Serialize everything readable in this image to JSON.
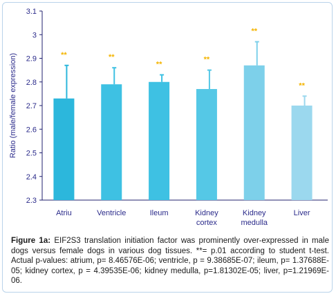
{
  "chart_data": {
    "type": "bar",
    "categories": [
      "Atriu",
      "Ventricle",
      "Ileum",
      "Kidney cortex",
      "Kidney medulla",
      "Liver"
    ],
    "category_lines": [
      [
        "Atriu"
      ],
      [
        "Ventricle"
      ],
      [
        "Ileum"
      ],
      [
        "Kidney",
        "cortex"
      ],
      [
        "Kidney",
        "medulla"
      ],
      [
        "Liver"
      ]
    ],
    "values": [
      2.73,
      2.79,
      2.8,
      2.77,
      2.87,
      2.7
    ],
    "error_upper": [
      2.87,
      2.86,
      2.83,
      2.85,
      2.97,
      2.74
    ],
    "annotations": [
      "**",
      "**",
      "**",
      "**",
      "**",
      "**"
    ],
    "bar_colors": [
      "#2cb7dc",
      "#3ec1e3",
      "#3ec1e3",
      "#55c8e6",
      "#7dd0ea",
      "#9bd8ee"
    ],
    "ylabel": "Ratio (male/female expression)",
    "ylim": [
      2.3,
      3.1
    ],
    "yticks": [
      "2.3",
      "2.4",
      "2.5",
      "2.6",
      "2.7",
      "2.8",
      "2.9",
      "3",
      "3.1"
    ],
    "grid": false,
    "colors": {
      "axis": "#1f1f6e",
      "label": "#2a2a8a",
      "annotation": "#f4b400"
    }
  },
  "caption": {
    "label": "Figure 1a:",
    "text": " EIF2S3 translation initiation factor was prominently over-expressed in male dogs versus female dogs in various dog tissues. **= p.01 according to student t-test. Actual p-values: atrium, p= 8.46576E-06; ventricle, p = 9.38685E-07; ileum, p= 1.37688E-05; kidney cortex, p = 4.39535E-06; kidney medulla, p=1.81302E-05; liver, p=1.21969E-06."
  }
}
